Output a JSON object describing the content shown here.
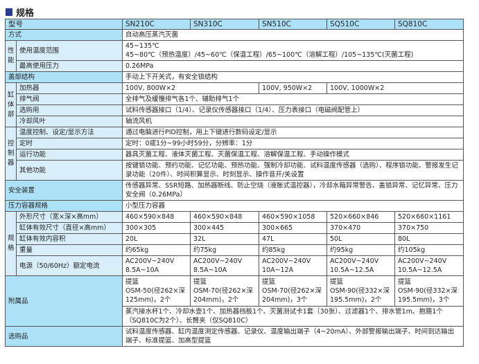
{
  "title": "规格",
  "header": {
    "label": "型号",
    "models": [
      "SN210C",
      "SN310C",
      "SN510C",
      "SQ510C",
      "SQ810C"
    ]
  },
  "method": {
    "label": "方式",
    "value": "自动高压蒸汽灭菌"
  },
  "performance": {
    "group": "性能",
    "temp_label": "使用温度范围",
    "temp_line1": "45~135℃",
    "temp_line2": "45~80℃（预热温度）/45~60℃（保温工程）/65~100℃（溶解工程）/105~135℃(灭菌工程)",
    "pressure_label": "最高使用压力",
    "pressure": "0.26MPa"
  },
  "lid": {
    "label": "盖部结构",
    "value": "手动上下开关式，有安全锁结构"
  },
  "chamber": {
    "group": "缸体部",
    "heater_label": "加热器",
    "heater": [
      "100V, 800W×2",
      "100V, 950W×2",
      "100V, 1000W×2"
    ],
    "exhaust_label": "排气阀",
    "exhaust": "全排气及缓慢排气各1个、辅助排气1个",
    "option_label": "选购用",
    "option": "试料传感器接口（1/4）、记录仪传感器接口（1/4）、压力表接口（电磁阀配管上）",
    "fan_label": "冷却风叶",
    "fan": "轴流风机"
  },
  "controller": {
    "group": "控制器",
    "temp_label": "温度控制、设定/显示方法",
    "temp": "通过电脑进行PID控制，用上下键进行数码设定/显示",
    "timer_label": "定时",
    "timer": "定时：0或1分~99小时59分，分辨率：1分",
    "run_label": "运行功能",
    "run": "器具灭菌工程、液体灭菌工程、灭菌保温工程、溶解保温工程、手动操作模式",
    "other_label": "其他功能",
    "other": "按键锁功能、预约功能、记忆功能、预热功能、强制冷却功能、试料温度传感器（选购）、程序锁功能、警报发生记录功能（20件）、时间积算显示、时刻显示、操作音开/关设置"
  },
  "safety": {
    "label": "安全装置",
    "value": "传感器异常、SSR短路、加热器断线、防止空烧（液胀式温控器），冷却水箱异常警告、盖锁异常、记忆异常、压力安全阀（0.26MPa）"
  },
  "vessel": {
    "label": "压力容器规格",
    "value": "小型压力容器"
  },
  "spec": {
    "group": "规格",
    "rows": [
      {
        "label": "外形尺寸（宽×深×高mm）",
        "values": [
          "460×590×848",
          "460×590×848",
          "460×590×1058",
          "520×660×846",
          "520×660×1161"
        ]
      },
      {
        "label": "缸体有效尺寸（直径×高mm）",
        "values": [
          "300×305",
          "300×445",
          "300×665",
          "370×470",
          "370×750"
        ]
      },
      {
        "label": "缸体有效内容积",
        "values": [
          "20L",
          "32L",
          "47L",
          "50L",
          "80L"
        ]
      },
      {
        "label": "重量",
        "values": [
          "约65kg",
          "约75kg",
          "约85kg",
          "约95kg",
          "约105kg"
        ]
      }
    ],
    "power_label": "电源（50/60Hz）额定电流",
    "power": [
      [
        "AC200V~240V",
        "8.5A~10A"
      ],
      [
        "AC200V~240V",
        "8.5A~10A"
      ],
      [
        "AC200V~240V",
        "10A~12A"
      ],
      [
        "AC200V~240V",
        "10.5A~12.5A"
      ],
      [
        "AC200V~240V",
        "10.5A~12.5A"
      ]
    ]
  },
  "accessories": {
    "label": "附属品",
    "baskets": [
      [
        "提篮",
        "OSM-50(径262×深",
        "125mm)，2个"
      ],
      [
        "提篮",
        "OSM-70(径262×深",
        "204mm)，2个"
      ],
      [
        "提篮",
        "OSM-70(径262×深",
        "204mm)，3个"
      ],
      [
        "提篮",
        "OSM-90(径332×深",
        "195.5mm)，2个"
      ],
      [
        "提篮",
        "OSM-90(径332×深",
        "195.5mm)，3个"
      ]
    ],
    "common": "蒸汽接水杯1个、冷却水壶1个、加热器挡板1个、灭菌测试卡1套（30张）、过滤器1个、排水管1m、抱箍1个（SQ810C为2个）、长臂夹（仅SQ810C）"
  },
  "optional": {
    "label": "选购品",
    "value": "试料温度传感器、缸内温度测定传感器、记录仪、温度输出端子（4~20mA）、外部警报输出端子、时间到达输出端子、标准提篮、加高型提篮"
  }
}
